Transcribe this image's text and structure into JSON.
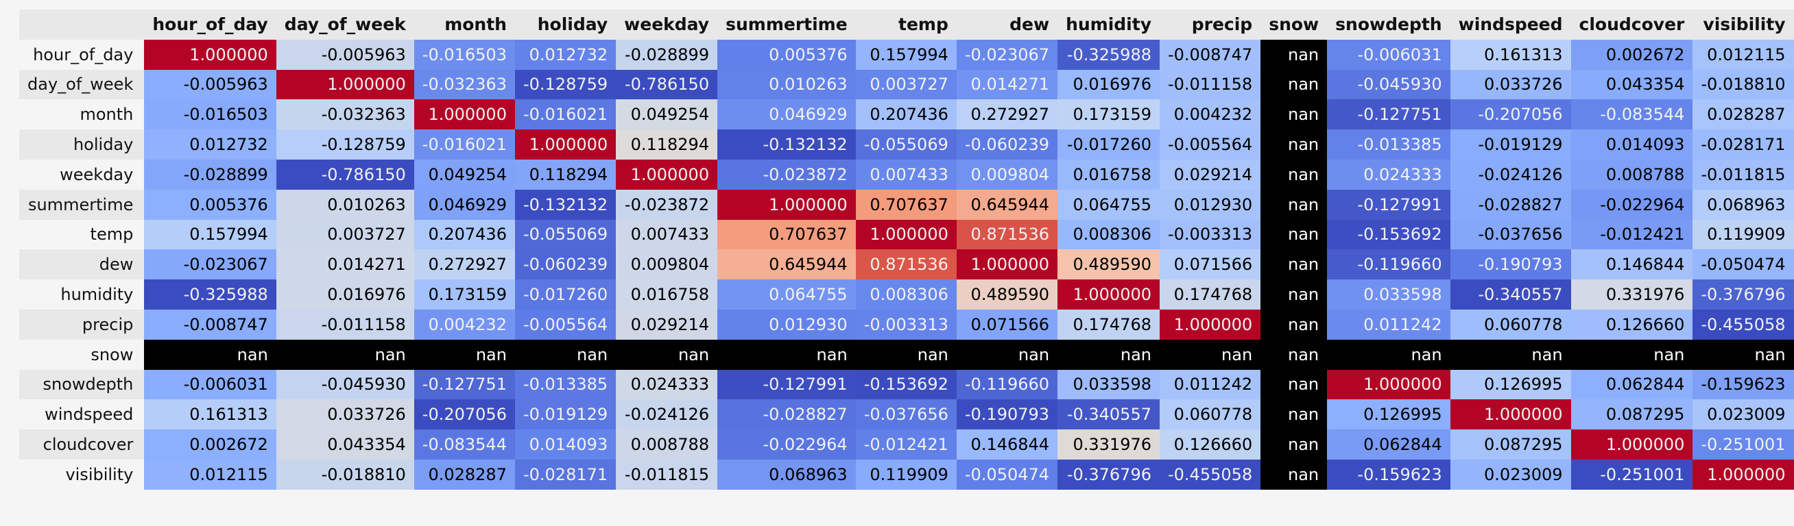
{
  "table": {
    "corner_label": "",
    "columns": [
      "hour_of_day",
      "day_of_week",
      "month",
      "holiday",
      "weekday",
      "summertime",
      "temp",
      "dew",
      "humidity",
      "precip",
      "snow",
      "snowdepth",
      "windspeed",
      "cloudcover",
      "visibility"
    ],
    "rows": [
      {
        "label": "hour_of_day",
        "values": [
          "1.000000",
          "-0.005963",
          "-0.016503",
          "0.012732",
          "-0.028899",
          "0.005376",
          "0.157994",
          "-0.023067",
          "-0.325988",
          "-0.008747",
          "nan",
          "-0.006031",
          "0.161313",
          "0.002672",
          "0.012115"
        ]
      },
      {
        "label": "day_of_week",
        "values": [
          "-0.005963",
          "1.000000",
          "-0.032363",
          "-0.128759",
          "-0.786150",
          "0.010263",
          "0.003727",
          "0.014271",
          "0.016976",
          "-0.011158",
          "nan",
          "-0.045930",
          "0.033726",
          "0.043354",
          "-0.018810"
        ]
      },
      {
        "label": "month",
        "values": [
          "-0.016503",
          "-0.032363",
          "1.000000",
          "-0.016021",
          "0.049254",
          "0.046929",
          "0.207436",
          "0.272927",
          "0.173159",
          "0.004232",
          "nan",
          "-0.127751",
          "-0.207056",
          "-0.083544",
          "0.028287"
        ]
      },
      {
        "label": "holiday",
        "values": [
          "0.012732",
          "-0.128759",
          "-0.016021",
          "1.000000",
          "0.118294",
          "-0.132132",
          "-0.055069",
          "-0.060239",
          "-0.017260",
          "-0.005564",
          "nan",
          "-0.013385",
          "-0.019129",
          "0.014093",
          "-0.028171"
        ]
      },
      {
        "label": "weekday",
        "values": [
          "-0.028899",
          "-0.786150",
          "0.049254",
          "0.118294",
          "1.000000",
          "-0.023872",
          "0.007433",
          "0.009804",
          "0.016758",
          "0.029214",
          "nan",
          "0.024333",
          "-0.024126",
          "0.008788",
          "-0.011815"
        ]
      },
      {
        "label": "summertime",
        "values": [
          "0.005376",
          "0.010263",
          "0.046929",
          "-0.132132",
          "-0.023872",
          "1.000000",
          "0.707637",
          "0.645944",
          "0.064755",
          "0.012930",
          "nan",
          "-0.127991",
          "-0.028827",
          "-0.022964",
          "0.068963"
        ]
      },
      {
        "label": "temp",
        "values": [
          "0.157994",
          "0.003727",
          "0.207436",
          "-0.055069",
          "0.007433",
          "0.707637",
          "1.000000",
          "0.871536",
          "0.008306",
          "-0.003313",
          "nan",
          "-0.153692",
          "-0.037656",
          "-0.012421",
          "0.119909"
        ]
      },
      {
        "label": "dew",
        "values": [
          "-0.023067",
          "0.014271",
          "0.272927",
          "-0.060239",
          "0.009804",
          "0.645944",
          "0.871536",
          "1.000000",
          "0.489590",
          "0.071566",
          "nan",
          "-0.119660",
          "-0.190793",
          "0.146844",
          "-0.050474"
        ]
      },
      {
        "label": "humidity",
        "values": [
          "-0.325988",
          "0.016976",
          "0.173159",
          "-0.017260",
          "0.016758",
          "0.064755",
          "0.008306",
          "0.489590",
          "1.000000",
          "0.174768",
          "nan",
          "0.033598",
          "-0.340557",
          "0.331976",
          "-0.376796"
        ]
      },
      {
        "label": "precip",
        "values": [
          "-0.008747",
          "-0.011158",
          "0.004232",
          "-0.005564",
          "0.029214",
          "0.012930",
          "-0.003313",
          "0.071566",
          "0.174768",
          "1.000000",
          "nan",
          "0.011242",
          "0.060778",
          "0.126660",
          "-0.455058"
        ]
      },
      {
        "label": "snow",
        "values": [
          "nan",
          "nan",
          "nan",
          "nan",
          "nan",
          "nan",
          "nan",
          "nan",
          "nan",
          "nan",
          "nan",
          "nan",
          "nan",
          "nan",
          "nan"
        ]
      },
      {
        "label": "snowdepth",
        "values": [
          "-0.006031",
          "-0.045930",
          "-0.127751",
          "-0.013385",
          "0.024333",
          "-0.127991",
          "-0.153692",
          "-0.119660",
          "0.033598",
          "0.011242",
          "nan",
          "1.000000",
          "0.126995",
          "0.062844",
          "-0.159623"
        ]
      },
      {
        "label": "windspeed",
        "values": [
          "0.161313",
          "0.033726",
          "-0.207056",
          "-0.019129",
          "-0.024126",
          "-0.028827",
          "-0.037656",
          "-0.190793",
          "-0.340557",
          "0.060778",
          "nan",
          "0.126995",
          "1.000000",
          "0.087295",
          "0.023009"
        ]
      },
      {
        "label": "cloudcover",
        "values": [
          "0.002672",
          "0.043354",
          "-0.083544",
          "0.014093",
          "0.008788",
          "-0.022964",
          "-0.012421",
          "0.146844",
          "0.331976",
          "0.126660",
          "nan",
          "0.062844",
          "0.087295",
          "1.000000",
          "-0.251001"
        ]
      },
      {
        "label": "visibility",
        "values": [
          "0.012115",
          "-0.018810",
          "0.028287",
          "-0.028171",
          "-0.011815",
          "0.068963",
          "0.119909",
          "-0.050474",
          "-0.376796",
          "-0.455058",
          "nan",
          "-0.159623",
          "0.023009",
          "-0.251001",
          "1.000000"
        ]
      }
    ]
  },
  "colors": {
    "nan_background": "#000000",
    "nan_text": "#ffffff",
    "colormap": "coolwarm",
    "header_background": "#e8e8e8",
    "page_background": "#f5f5f5"
  }
}
